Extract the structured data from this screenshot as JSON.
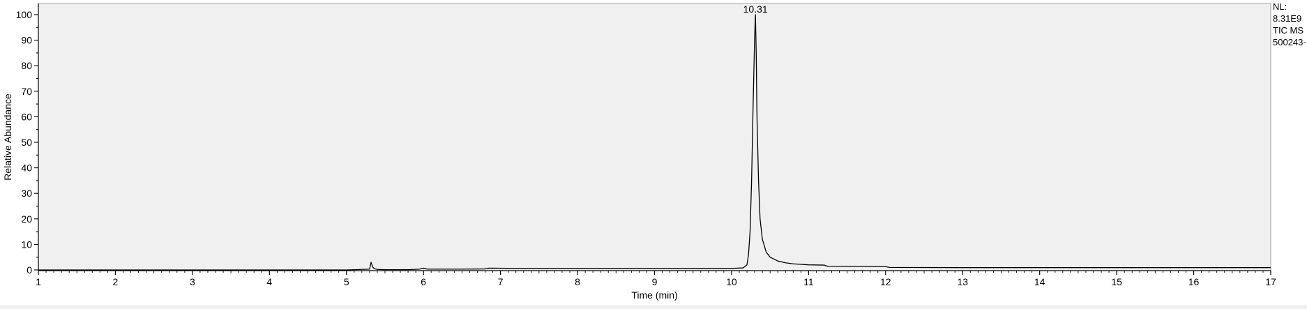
{
  "chart_data": {
    "type": "line",
    "title": "",
    "xlabel": "Time (min)",
    "ylabel": "Relative Abundance",
    "xlim": [
      1,
      17
    ],
    "ylim": [
      0,
      100
    ],
    "xticks": [
      1,
      2,
      3,
      4,
      5,
      6,
      7,
      8,
      9,
      10,
      11,
      12,
      13,
      14,
      15,
      16,
      17
    ],
    "yticks": [
      0,
      10,
      20,
      30,
      40,
      50,
      60,
      70,
      80,
      90,
      100
    ],
    "grid": false,
    "plot_background": "#f0f0f0",
    "line_color": "#000000",
    "peak_annotation": {
      "x": 10.31,
      "y": 100,
      "label": "10.31"
    },
    "series": [
      {
        "name": "TIC MS",
        "x": [
          1.0,
          2.0,
          3.0,
          4.0,
          5.0,
          5.3,
          5.32,
          5.34,
          5.36,
          5.4,
          5.5,
          5.8,
          5.95,
          6.0,
          6.05,
          6.5,
          6.8,
          6.85,
          7.2,
          8.0,
          9.0,
          10.0,
          10.15,
          10.2,
          10.22,
          10.24,
          10.26,
          10.28,
          10.3,
          10.31,
          10.32,
          10.33,
          10.35,
          10.37,
          10.4,
          10.45,
          10.5,
          10.6,
          10.7,
          10.8,
          11.0,
          11.2,
          11.25,
          12.0,
          12.05,
          13.0,
          14.0,
          15.0,
          16.0,
          17.0
        ],
        "y": [
          0.0,
          0.0,
          0.0,
          0.0,
          0.0,
          0.3,
          3.0,
          1.2,
          0.5,
          0.2,
          0.1,
          0.1,
          0.3,
          0.7,
          0.3,
          0.3,
          0.4,
          0.7,
          0.6,
          0.6,
          0.6,
          0.6,
          0.8,
          2.0,
          6.0,
          15.0,
          35.0,
          65.0,
          92.0,
          100.0,
          85.0,
          60.0,
          35.0,
          20.0,
          12.0,
          7.0,
          5.0,
          3.5,
          2.8,
          2.4,
          2.0,
          1.9,
          1.4,
          1.3,
          1.0,
          0.9,
          0.9,
          0.9,
          0.9,
          0.9
        ]
      }
    ]
  },
  "info": {
    "nl_label": "NL:",
    "nl_value": "8.31E9",
    "scan_filter": "TIC  MS",
    "file_name": "500243-"
  }
}
